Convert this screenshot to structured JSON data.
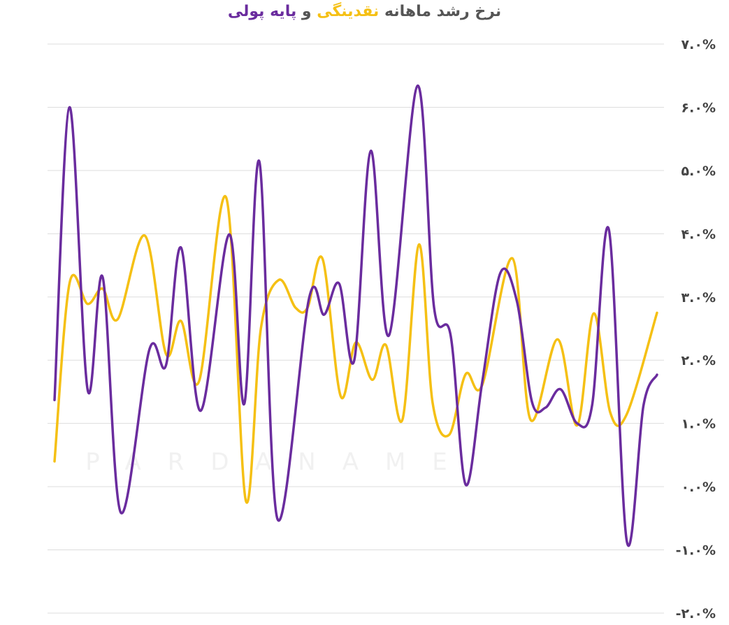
{
  "chart_data": {
    "type": "line",
    "title_parts": [
      {
        "text": "نرخ رشد ماهانه ",
        "color": "#555555"
      },
      {
        "text": "نقدینگی",
        "color": "#f5c014"
      },
      {
        "text": " و ",
        "color": "#555555"
      },
      {
        "text": "پایه پولی",
        "color": "#6a2c9e"
      }
    ],
    "watermark": "PARDANAME",
    "xlim": [
      0,
      40
    ],
    "ylim": [
      -2,
      7
    ],
    "yticks": [
      {
        "value": -2,
        "label": "-۲.۰%"
      },
      {
        "value": -1,
        "label": "-۱.۰%"
      },
      {
        "value": 0,
        "label": "۰.۰%"
      },
      {
        "value": 1,
        "label": "۱.۰%"
      },
      {
        "value": 2,
        "label": "۲.۰%"
      },
      {
        "value": 3,
        "label": "۳.۰%"
      },
      {
        "value": 4,
        "label": "۴.۰%"
      },
      {
        "value": 5,
        "label": "۵.۰%"
      },
      {
        "value": 6,
        "label": "۶.۰%"
      },
      {
        "value": 7,
        "label": "۷.۰%"
      }
    ],
    "grid": true,
    "series": [
      {
        "color": "#f5c014",
        "x": [
          0,
          1.0,
          2.2,
          3.2,
          4.2,
          6.0,
          7.4,
          8.4,
          9.6,
          11.4,
          12.7,
          13.7,
          14.9,
          16.0,
          16.8,
          17.8,
          19.0,
          20.0,
          21.1,
          22.0,
          23.1,
          24.2,
          25.1,
          26.2,
          27.3,
          28.4,
          30.4,
          31.6,
          33.4,
          34.7,
          35.8,
          36.9,
          38.0,
          40.0
        ],
        "values": [
          0.4,
          3.22,
          2.89,
          3.13,
          2.65,
          3.97,
          2.1,
          2.62,
          1.67,
          4.57,
          -0.22,
          2.5,
          3.27,
          2.83,
          2.83,
          3.6,
          1.43,
          2.28,
          1.69,
          2.24,
          1.06,
          3.83,
          1.33,
          0.82,
          1.78,
          1.61,
          3.61,
          1.06,
          2.33,
          0.97,
          2.74,
          1.17,
          1.15,
          2.75
        ]
      },
      {
        "color": "#6a2c9e",
        "x": [
          0,
          1.0,
          2.2,
          3.2,
          4.4,
          6.3,
          7.4,
          8.4,
          9.7,
          11.6,
          12.6,
          13.6,
          14.8,
          16.9,
          17.9,
          18.9,
          19.9,
          21.0,
          22.2,
          24.1,
          25.2,
          26.3,
          27.3,
          28.4,
          29.6,
          30.7,
          31.7,
          32.6,
          33.6,
          34.7,
          35.7,
          36.8,
          38.0,
          39.1,
          40.0
        ],
        "values": [
          1.37,
          6.0,
          1.53,
          3.31,
          -0.41,
          2.17,
          1.92,
          3.78,
          1.2,
          3.99,
          1.31,
          5.14,
          -0.51,
          2.98,
          2.72,
          3.21,
          2.0,
          5.31,
          2.39,
          6.34,
          2.83,
          2.39,
          0.03,
          1.66,
          3.38,
          2.93,
          1.34,
          1.25,
          1.54,
          1.0,
          1.3,
          4.07,
          -0.87,
          1.28,
          1.77
        ]
      }
    ]
  }
}
